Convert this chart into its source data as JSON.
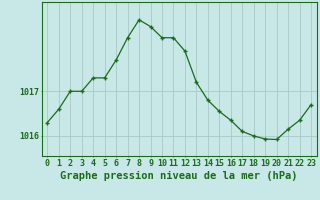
{
  "x": [
    0,
    1,
    2,
    3,
    4,
    5,
    6,
    7,
    8,
    9,
    10,
    11,
    12,
    13,
    14,
    15,
    16,
    17,
    18,
    19,
    20,
    21,
    22,
    23
  ],
  "y": [
    1016.3,
    1016.6,
    1017.0,
    1017.0,
    1017.3,
    1017.3,
    1017.7,
    1018.2,
    1018.6,
    1018.45,
    1018.2,
    1018.2,
    1017.9,
    1017.2,
    1016.8,
    1016.55,
    1016.35,
    1016.1,
    1016.0,
    1015.93,
    1015.92,
    1016.15,
    1016.35,
    1016.7
  ],
  "line_color": "#1a6b1a",
  "marker": "+",
  "bg_color": "#c8e8e8",
  "grid_color": "#a8c8c8",
  "axis_color": "#1a6b1a",
  "xlabel": "Graphe pression niveau de la mer (hPa)",
  "yticks": [
    1016,
    1017
  ],
  "ylim": [
    1015.55,
    1019.0
  ],
  "xlim": [
    -0.5,
    23.5
  ],
  "xtick_labels": [
    "0",
    "1",
    "2",
    "3",
    "4",
    "5",
    "6",
    "7",
    "8",
    "9",
    "10",
    "11",
    "12",
    "13",
    "14",
    "15",
    "16",
    "17",
    "18",
    "19",
    "20",
    "21",
    "22",
    "23"
  ],
  "title_fontsize": 7.5,
  "tick_fontsize": 6.0
}
